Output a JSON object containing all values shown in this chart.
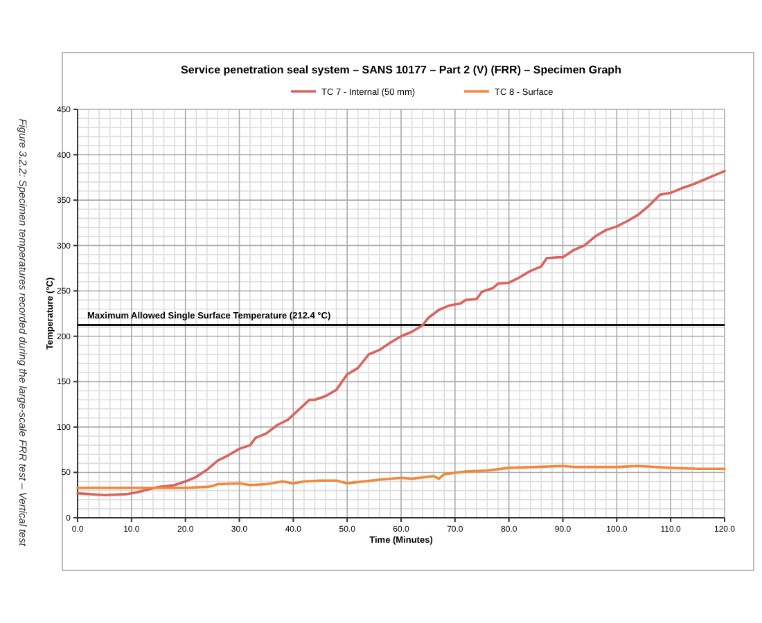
{
  "chart_data": {
    "type": "line",
    "title": "Service penetration seal system – SANS 10177 – Part 2 (V) (FRR) – Specimen Graph",
    "xlabel": "Time (Minutes)",
    "ylabel": "Temperature (°C)",
    "annotations": [
      "Figure 3.2.2: Specimen temperatures recorded during the large-scale FRR test – Vertical test"
    ],
    "xlim": [
      0,
      120
    ],
    "ylim": [
      0,
      450
    ],
    "xticks": [
      {
        "value": 0,
        "label": "0.0"
      },
      {
        "value": 10,
        "label": "10.0"
      },
      {
        "value": 20,
        "label": "20.0"
      },
      {
        "value": 30,
        "label": "30.0"
      },
      {
        "value": 40,
        "label": "40.0"
      },
      {
        "value": 50,
        "label": "50.0"
      },
      {
        "value": 60,
        "label": "60.0"
      },
      {
        "value": 70,
        "label": "70.0"
      },
      {
        "value": 80,
        "label": "80.0"
      },
      {
        "value": 90,
        "label": "90.0"
      },
      {
        "value": 100,
        "label": "100.0"
      },
      {
        "value": 110,
        "label": "110.0"
      },
      {
        "value": 120,
        "label": "120.0"
      }
    ],
    "yticks": [
      0,
      50,
      100,
      150,
      200,
      250,
      300,
      350,
      400,
      450
    ],
    "grid": true,
    "legend": "top",
    "line_style": "solid",
    "marker": "none",
    "ref_lines": [
      {
        "axis": "y",
        "value": 212.4,
        "label": "Maximum Allowed Single Surface Temperature (212.4 °C)",
        "color": "#111111"
      }
    ],
    "series": [
      {
        "name": "TC 7 - Internal (50 mm)",
        "color": "#d9645f",
        "x": [
          0,
          5,
          9,
          11,
          13,
          15,
          18,
          20,
          22,
          24,
          26,
          28,
          30,
          32,
          33,
          35,
          37,
          39,
          41,
          43,
          44,
          46,
          48,
          50,
          52,
          54,
          56,
          58,
          60,
          62,
          64,
          65,
          67,
          69,
          71,
          72,
          74,
          75,
          77,
          78,
          80,
          82,
          84,
          86,
          87,
          89,
          90,
          92,
          94,
          96,
          98,
          100,
          102,
          104,
          106,
          108,
          110,
          112,
          114,
          116,
          118,
          120
        ],
        "values": [
          27,
          25,
          26,
          28,
          31,
          34,
          36,
          40,
          45,
          53,
          63,
          69,
          76,
          80,
          88,
          93,
          102,
          108,
          119,
          130,
          130,
          134,
          141,
          158,
          165,
          180,
          185,
          193,
          200,
          205,
          212,
          220,
          229,
          234,
          236,
          240,
          241,
          249,
          253,
          258,
          259,
          265,
          272,
          277,
          286,
          287,
          287,
          295,
          300,
          310,
          317,
          321,
          327,
          334,
          344,
          356,
          358,
          363,
          367,
          372,
          377,
          382
        ]
      },
      {
        "name": "TC 8 - Surface",
        "color": "#f4873b",
        "x": [
          0,
          5,
          10,
          16,
          20,
          24,
          25,
          26,
          30,
          32,
          35,
          38,
          40,
          42,
          45,
          48,
          50,
          53,
          56,
          60,
          62,
          66,
          67,
          68,
          72,
          76,
          80,
          85,
          90,
          92,
          96,
          100,
          104,
          110,
          115,
          120
        ],
        "values": [
          33,
          33,
          33,
          33,
          33,
          34,
          35,
          37,
          38,
          36,
          37,
          40,
          38,
          40,
          41,
          41,
          38,
          40,
          42,
          44,
          43,
          46,
          43,
          48,
          51,
          52,
          55,
          56,
          57,
          56,
          56,
          56,
          57,
          55,
          54,
          54
        ]
      }
    ]
  }
}
